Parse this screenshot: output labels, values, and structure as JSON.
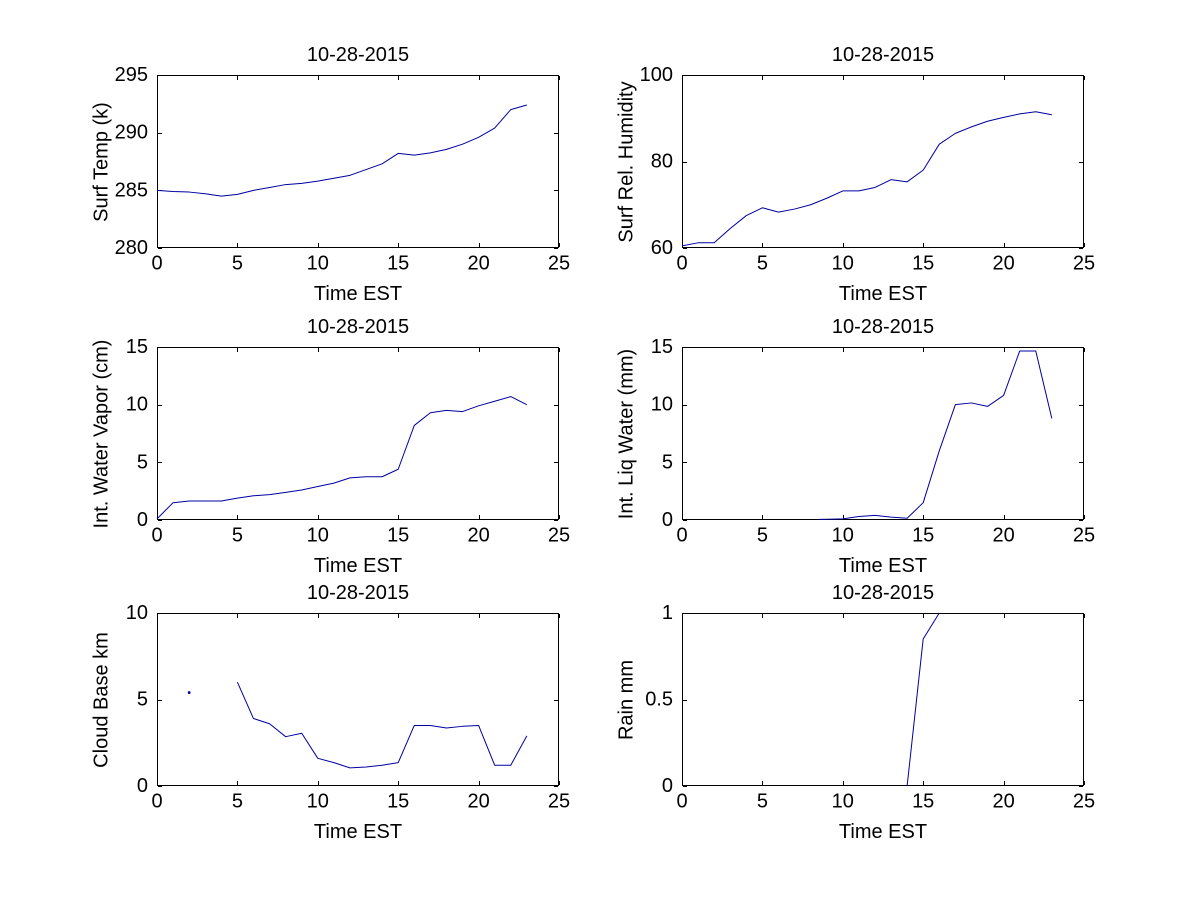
{
  "figure": {
    "background": "#ffffff",
    "axis_color": "#000000",
    "text_color": "#000000",
    "line_color": "#0000A0",
    "date": "10-28-2015"
  },
  "chart_data": [
    {
      "id": "surf-temp",
      "type": "line",
      "title": "10-28-2015",
      "xlabel": "Time EST",
      "ylabel": "Surf Temp (k)",
      "xlim": [
        0,
        25
      ],
      "ylim": [
        280,
        295
      ],
      "xticks": [
        0,
        5,
        10,
        15,
        20,
        25
      ],
      "yticks": [
        280,
        285,
        290,
        295
      ],
      "grid": false,
      "legend": null,
      "x": [
        0,
        1,
        2,
        3,
        4,
        5,
        6,
        7,
        8,
        9,
        10,
        11,
        12,
        13,
        14,
        15,
        16,
        17,
        18,
        19,
        20,
        21,
        22,
        23
      ],
      "y": [
        285.0,
        284.9,
        284.85,
        284.7,
        284.5,
        284.65,
        285.0,
        285.25,
        285.5,
        285.6,
        285.8,
        286.05,
        286.3,
        286.8,
        287.3,
        288.2,
        288.05,
        288.25,
        288.55,
        289.0,
        289.6,
        290.4,
        292.0,
        292.4
      ],
      "markers": []
    },
    {
      "id": "surf-rel-humidity",
      "type": "line",
      "title": "10-28-2015",
      "xlabel": "Time EST",
      "ylabel": "Surf Rel. Humidity",
      "xlim": [
        0,
        25
      ],
      "ylim": [
        60,
        100
      ],
      "xticks": [
        0,
        5,
        10,
        15,
        20,
        25
      ],
      "yticks": [
        60,
        80,
        100
      ],
      "grid": false,
      "legend": null,
      "x": [
        0,
        1,
        2,
        3,
        4,
        5,
        6,
        7,
        8,
        9,
        10,
        11,
        12,
        13,
        14,
        15,
        16,
        17,
        18,
        19,
        20,
        21,
        22,
        23
      ],
      "y": [
        60.5,
        61.2,
        61.2,
        64.5,
        67.5,
        69.3,
        68.3,
        69.0,
        70.0,
        71.5,
        73.2,
        73.2,
        74.0,
        75.8,
        75.3,
        78.0,
        84.0,
        86.5,
        88.0,
        89.3,
        90.2,
        91.0,
        91.5,
        90.8
      ],
      "markers": []
    },
    {
      "id": "int-water-vapor",
      "type": "line",
      "title": "10-28-2015",
      "xlabel": "Time EST",
      "ylabel": "Int. Water Vapor (cm)",
      "xlim": [
        0,
        25
      ],
      "ylim": [
        0,
        15
      ],
      "xticks": [
        0,
        5,
        10,
        15,
        20,
        25
      ],
      "yticks": [
        0,
        5,
        10,
        15
      ],
      "grid": false,
      "legend": null,
      "x": [
        0,
        1,
        2,
        3,
        4,
        5,
        6,
        7,
        8,
        9,
        10,
        11,
        12,
        13,
        14,
        15,
        16,
        17,
        18,
        19,
        20,
        21,
        22,
        23
      ],
      "y": [
        0.1,
        1.5,
        1.65,
        1.65,
        1.65,
        1.9,
        2.1,
        2.2,
        2.4,
        2.6,
        2.9,
        3.2,
        3.65,
        3.75,
        3.75,
        4.4,
        8.2,
        9.3,
        9.5,
        9.4,
        9.9,
        10.3,
        10.7,
        10.0
      ],
      "markers": []
    },
    {
      "id": "int-liq-water",
      "type": "line",
      "title": "10-28-2015",
      "xlabel": "Time EST",
      "ylabel": "Int. Liq Water (mm)",
      "xlim": [
        0,
        25
      ],
      "ylim": [
        0,
        15
      ],
      "xticks": [
        0,
        5,
        10,
        15,
        20,
        25
      ],
      "yticks": [
        0,
        5,
        10,
        15
      ],
      "grid": false,
      "legend": null,
      "x": [
        8.5,
        9,
        10,
        11,
        12,
        13,
        14,
        15,
        16,
        17,
        18,
        19,
        20,
        21,
        22,
        23
      ],
      "y": [
        0.05,
        0.07,
        0.1,
        0.3,
        0.4,
        0.25,
        0.15,
        1.5,
        6.0,
        10.0,
        10.15,
        9.85,
        10.8,
        14.65,
        14.65,
        8.8
      ],
      "markers": []
    },
    {
      "id": "cloud-base",
      "type": "line",
      "title": "10-28-2015",
      "xlabel": "Time EST",
      "ylabel": "Cloud Base km",
      "xlim": [
        0,
        25
      ],
      "ylim": [
        0,
        10
      ],
      "xticks": [
        0,
        5,
        10,
        15,
        20,
        25
      ],
      "yticks": [
        0,
        5,
        10
      ],
      "grid": false,
      "legend": null,
      "x": [
        5,
        6,
        7,
        8,
        9,
        10,
        11,
        12,
        13,
        14,
        15,
        16,
        17,
        18,
        19,
        20,
        21,
        22,
        23
      ],
      "y": [
        6.0,
        3.9,
        3.6,
        2.85,
        3.05,
        1.6,
        1.35,
        1.05,
        1.1,
        1.2,
        1.35,
        3.5,
        3.5,
        3.35,
        3.45,
        3.5,
        1.2,
        1.2,
        2.9
      ],
      "markers": [
        [
          2,
          5.4
        ]
      ]
    },
    {
      "id": "rain",
      "type": "line",
      "title": "10-28-2015",
      "xlabel": "Time EST",
      "ylabel": "Rain mm",
      "xlim": [
        0,
        25
      ],
      "ylim": [
        0,
        1
      ],
      "xticks": [
        0,
        5,
        10,
        15,
        20,
        25
      ],
      "yticks": [
        0,
        0.5,
        1
      ],
      "grid": false,
      "legend": null,
      "x": [
        14,
        15,
        16
      ],
      "y": [
        0,
        0.85,
        1.0
      ],
      "markers": []
    }
  ]
}
